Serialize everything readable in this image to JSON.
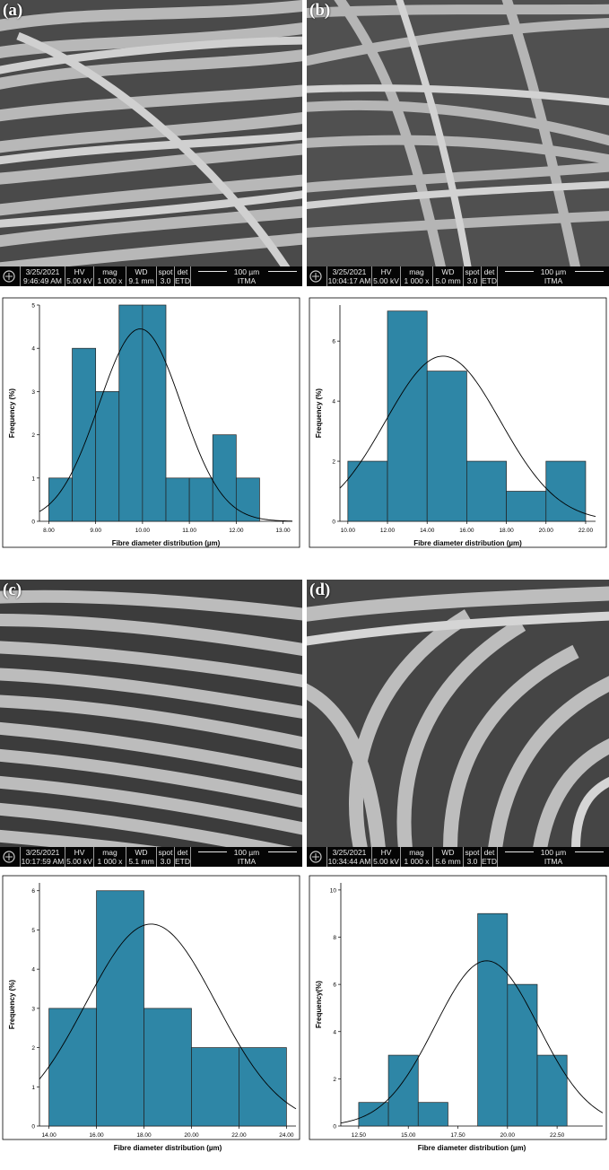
{
  "panels": [
    {
      "label": "(a)",
      "sem": {
        "date": "3/25/2021",
        "time": "9:46:49 AM",
        "hv_label": "HV",
        "hv": "5.00 kV",
        "mag_label": "mag",
        "mag": "1 000 x",
        "wd_label": "WD",
        "wd": "9.1 mm",
        "spot_label": "spot",
        "spot": "3.0",
        "det_label": "det",
        "det": "ETD",
        "scale": "100 µm",
        "lab": "ITMA"
      }
    },
    {
      "label": "(b)",
      "sem": {
        "date": "3/25/2021",
        "time": "10:04:17 AM",
        "hv_label": "HV",
        "hv": "5.00 kV",
        "mag_label": "mag",
        "mag": "1 000 x",
        "wd_label": "WD",
        "wd": "5.0 mm",
        "spot_label": "spot",
        "spot": "3.0",
        "det_label": "det",
        "det": "ETD",
        "scale": "100 µm",
        "lab": "ITMA"
      }
    },
    {
      "label": "(c)",
      "sem": {
        "date": "3/25/2021",
        "time": "10:17:59 AM",
        "hv_label": "HV",
        "hv": "5.00 kV",
        "mag_label": "mag",
        "mag": "1 000 x",
        "wd_label": "WD",
        "wd": "5.1 mm",
        "spot_label": "spot",
        "spot": "3.0",
        "det_label": "det",
        "det": "ETD",
        "scale": "100 µm",
        "lab": "ITMA"
      }
    },
    {
      "label": "(d)",
      "sem": {
        "date": "3/25/2021",
        "time": "10:34:44 AM",
        "hv_label": "HV",
        "hv": "5.00 kV",
        "mag_label": "mag",
        "mag": "1 000 x",
        "wd_label": "WD",
        "wd": "5.6 mm",
        "spot_label": "spot",
        "spot": "3.0",
        "det_label": "det",
        "det": "ETD",
        "scale": "100 µm",
        "lab": "ITMA"
      }
    }
  ],
  "chart_data": [
    {
      "type": "bar",
      "panel": "(a)",
      "xlabel": "Fibre diameter distribution (µm)",
      "ylabel": "Frequency (%)",
      "xlim": [
        7.8,
        13.2
      ],
      "ylim": [
        0,
        5
      ],
      "xticks": [
        "8.00",
        "9.00",
        "10.00",
        "11.00",
        "12.00",
        "13.00"
      ],
      "yticks": [
        "0",
        "1",
        "2",
        "3",
        "4",
        "5"
      ],
      "bins": [
        [
          8.0,
          8.5
        ],
        [
          8.5,
          9.0
        ],
        [
          9.0,
          9.5
        ],
        [
          9.5,
          10.0
        ],
        [
          10.0,
          10.5
        ],
        [
          10.5,
          11.0
        ],
        [
          11.0,
          11.5
        ],
        [
          11.5,
          12.0
        ],
        [
          12.0,
          12.5
        ]
      ],
      "values": [
        1,
        4,
        3,
        5,
        5,
        1,
        1,
        2,
        1
      ],
      "normal_curve": {
        "mean": 9.95,
        "peak": 4.45,
        "sd": 0.88
      },
      "bar_color": "#2E86A6"
    },
    {
      "type": "bar",
      "panel": "(b)",
      "xlabel": "Fibre diameter distribution (µm)",
      "ylabel": "Frequency (%)",
      "xlim": [
        9.6,
        22.5
      ],
      "ylim": [
        0,
        7.2
      ],
      "xticks": [
        "10.00",
        "12.00",
        "14.00",
        "16.00",
        "18.00",
        "20.00",
        "22.00"
      ],
      "yticks": [
        "0",
        "2",
        "4",
        "6"
      ],
      "bins": [
        [
          10,
          12
        ],
        [
          12,
          14
        ],
        [
          14,
          16
        ],
        [
          16,
          18
        ],
        [
          18,
          20
        ],
        [
          20,
          22
        ]
      ],
      "values": [
        2,
        7,
        5,
        2,
        1,
        2
      ],
      "normal_curve": {
        "mean": 14.8,
        "peak": 5.5,
        "sd": 2.9
      },
      "bar_color": "#2E86A6"
    },
    {
      "type": "bar",
      "panel": "(c)",
      "xlabel": "Fibre diameter distribution (µm)",
      "ylabel": "Frequency (%)",
      "xlim": [
        13.6,
        24.4
      ],
      "ylim": [
        0,
        6.2
      ],
      "xticks": [
        "14.00",
        "16.00",
        "18.00",
        "20.00",
        "22.00",
        "24.00"
      ],
      "yticks": [
        "0",
        "1",
        "2",
        "3",
        "4",
        "5",
        "6"
      ],
      "bins": [
        [
          14,
          16
        ],
        [
          16,
          18
        ],
        [
          18,
          20
        ],
        [
          20,
          22
        ],
        [
          22,
          24
        ]
      ],
      "values": [
        3,
        6,
        3,
        2,
        2
      ],
      "normal_curve": {
        "mean": 18.3,
        "peak": 5.15,
        "sd": 2.75
      },
      "bar_color": "#2E86A6"
    },
    {
      "type": "bar",
      "panel": "(d)",
      "xlabel": "Fibre diameter distribution (µm)",
      "ylabel": "Frequency(%)",
      "xlim": [
        11.6,
        24.8
      ],
      "ylim": [
        0,
        10.3
      ],
      "xticks": [
        "12.50",
        "15.00",
        "17.50",
        "20.00",
        "22.50"
      ],
      "yticks": [
        "0",
        "2",
        "4",
        "6",
        "8",
        "10"
      ],
      "bins": [
        [
          12.5,
          14.0
        ],
        [
          14.0,
          15.5
        ],
        [
          15.5,
          17.0
        ],
        [
          17.0,
          18.5
        ],
        [
          18.5,
          20.0
        ],
        [
          20.0,
          21.5
        ],
        [
          21.5,
          23.0
        ]
      ],
      "values": [
        1,
        3,
        1,
        0,
        9,
        6,
        3
      ],
      "normal_curve": {
        "mean": 18.95,
        "peak": 7.0,
        "sd": 2.6
      },
      "bar_color": "#2E86A6"
    }
  ]
}
